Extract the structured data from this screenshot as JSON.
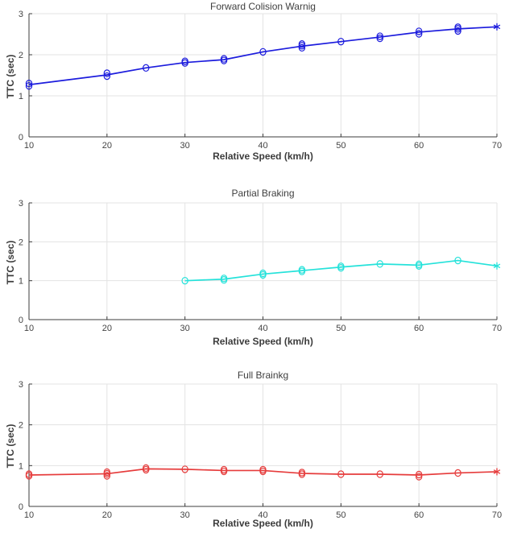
{
  "figure": {
    "background": "#ffffff",
    "axis_color": "#3c3c3c",
    "grid_color": "#e3e3e3",
    "tick_label_color": "#444444"
  },
  "chart_data": [
    {
      "type": "line",
      "title": "Forward Colision Warnig",
      "xlabel": "Relative Speed (km/h)",
      "ylabel": "TTC (sec)",
      "xlim": [
        10,
        70
      ],
      "ylim": [
        0,
        3
      ],
      "xticks": [
        10,
        20,
        30,
        40,
        50,
        60,
        70
      ],
      "yticks": [
        0,
        1,
        2,
        3
      ],
      "grid": true,
      "color": "#1c1cdd",
      "line": {
        "x": [
          10,
          20,
          25,
          30,
          35,
          40,
          45,
          50,
          55,
          60,
          65,
          70
        ],
        "y": [
          1.27,
          1.51,
          1.68,
          1.81,
          1.88,
          2.07,
          2.21,
          2.32,
          2.43,
          2.55,
          2.63,
          2.68
        ]
      },
      "scatter": [
        [
          10,
          1.24
        ],
        [
          10,
          1.3
        ],
        [
          20,
          1.48
        ],
        [
          20,
          1.55
        ],
        [
          25,
          1.68
        ],
        [
          30,
          1.8
        ],
        [
          30,
          1.84
        ],
        [
          35,
          1.86
        ],
        [
          35,
          1.9
        ],
        [
          40,
          2.07
        ],
        [
          45,
          2.17
        ],
        [
          45,
          2.22
        ],
        [
          45,
          2.26
        ],
        [
          50,
          2.32
        ],
        [
          55,
          2.4
        ],
        [
          55,
          2.45
        ],
        [
          60,
          2.51
        ],
        [
          60,
          2.57
        ],
        [
          65,
          2.58
        ],
        [
          65,
          2.63
        ],
        [
          65,
          2.67
        ]
      ],
      "end_marker": {
        "shape": "asterisk",
        "x": 70,
        "y": 2.68
      }
    },
    {
      "type": "line",
      "title": "Partial Braking",
      "xlabel": "Relative Speed (km/h)",
      "ylabel": "TTC (sec)",
      "xlim": [
        10,
        70
      ],
      "ylim": [
        0,
        3
      ],
      "xticks": [
        10,
        20,
        30,
        40,
        50,
        60,
        70
      ],
      "yticks": [
        0,
        1,
        2,
        3
      ],
      "grid": true,
      "color": "#25e2da",
      "line": {
        "x": [
          30,
          35,
          40,
          45,
          50,
          55,
          60,
          65,
          70
        ],
        "y": [
          1.0,
          1.04,
          1.17,
          1.26,
          1.35,
          1.43,
          1.4,
          1.52,
          1.38
        ]
      },
      "scatter": [
        [
          30,
          1.0
        ],
        [
          35,
          1.02
        ],
        [
          35,
          1.06
        ],
        [
          40,
          1.15
        ],
        [
          40,
          1.19
        ],
        [
          45,
          1.24
        ],
        [
          45,
          1.28
        ],
        [
          50,
          1.33
        ],
        [
          50,
          1.37
        ],
        [
          55,
          1.43
        ],
        [
          60,
          1.38
        ],
        [
          60,
          1.42
        ],
        [
          65,
          1.52
        ]
      ],
      "end_marker": {
        "shape": "asterisk",
        "x": 70,
        "y": 1.38
      }
    },
    {
      "type": "line",
      "title": "Full Brainkg",
      "xlabel": "Relative Speed (km/h)",
      "ylabel": "TTC (sec)",
      "xlim": [
        10,
        70
      ],
      "ylim": [
        0,
        3
      ],
      "xticks": [
        10,
        20,
        30,
        40,
        50,
        60,
        70
      ],
      "yticks": [
        0,
        1,
        2,
        3
      ],
      "grid": true,
      "color": "#e63c3c",
      "line": {
        "x": [
          10,
          20,
          25,
          30,
          35,
          40,
          45,
          50,
          55,
          60,
          65,
          70
        ],
        "y": [
          0.77,
          0.8,
          0.92,
          0.91,
          0.88,
          0.88,
          0.81,
          0.79,
          0.79,
          0.77,
          0.82,
          0.85
        ]
      },
      "scatter": [
        [
          10,
          0.75
        ],
        [
          10,
          0.79
        ],
        [
          20,
          0.75
        ],
        [
          20,
          0.8
        ],
        [
          20,
          0.84
        ],
        [
          25,
          0.9
        ],
        [
          25,
          0.94
        ],
        [
          30,
          0.91
        ],
        [
          35,
          0.86
        ],
        [
          35,
          0.9
        ],
        [
          40,
          0.86
        ],
        [
          40,
          0.9
        ],
        [
          45,
          0.79
        ],
        [
          45,
          0.83
        ],
        [
          50,
          0.79
        ],
        [
          55,
          0.79
        ],
        [
          60,
          0.73
        ],
        [
          60,
          0.78
        ],
        [
          65,
          0.82
        ]
      ],
      "end_marker": {
        "shape": "asterisk",
        "x": 70,
        "y": 0.85
      }
    }
  ]
}
